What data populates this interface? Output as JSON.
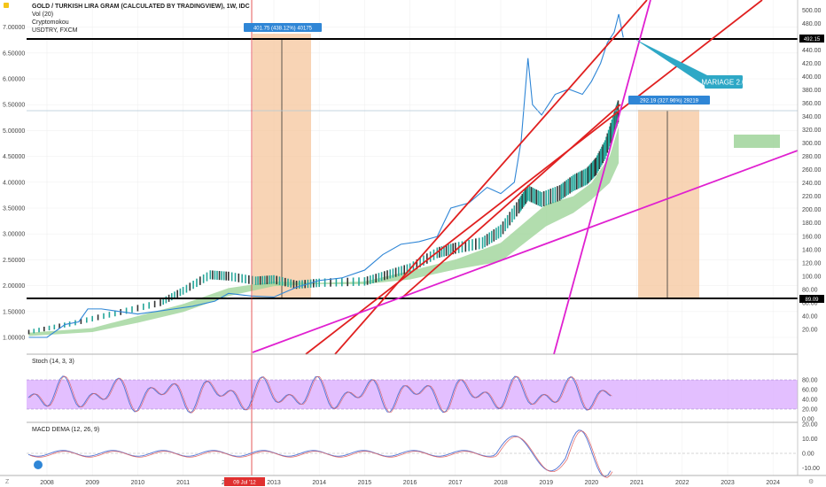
{
  "header": {
    "title": "GOLD / TURKISH LIRA GRAM (CALCULATED BY TRADINGVIEW), 1W, IDC",
    "lines": [
      "Vol (20)",
      "Cryptomokou",
      "USDTRY, FXCM"
    ]
  },
  "colors": {
    "gold_up": "#26a69a",
    "gold_down": "#333333",
    "usdtry": "#2f86d6",
    "red_line": "#e02020",
    "magenta_line": "#e020d0",
    "cloud": "#9fd49a",
    "range_box": "#f6c59c",
    "callout": "#2ea8c6",
    "stoch": "#e0b8ff"
  },
  "chart_data": [
    {
      "type": "line",
      "panel": "price",
      "x_ticks": [
        "2008",
        "2009",
        "2010",
        "2011",
        "2012",
        "2013",
        "2014",
        "2015",
        "2016",
        "2017",
        "2018",
        "2019",
        "2020",
        "2021",
        "2022",
        "2023",
        "2024"
      ],
      "left_axis": {
        "ticks": [
          "7.00000",
          "6.50000",
          "6.00000",
          "5.50000",
          "5.00000",
          "4.50000",
          "4.00000",
          "3.50000",
          "3.00000",
          "2.50000",
          "2.00000",
          "1.50000",
          "1.00000"
        ],
        "range": [
          0.95,
          7.5
        ]
      },
      "right_axis": {
        "ticks": [
          "540.00",
          "520.00",
          "500.00",
          "480.00",
          "460.00",
          "440.00",
          "420.00",
          "400.00",
          "380.00",
          "360.00",
          "340.00",
          "320.00",
          "300.00",
          "280.00",
          "260.00",
          "240.00",
          "220.00",
          "200.00",
          "180.00",
          "160.00",
          "140.00",
          "120.00",
          "100.00",
          "80.00",
          "60.00",
          "40.00",
          "20.00"
        ],
        "range": [
          0,
          550
        ]
      },
      "series": [
        {
          "role": "usdtry_blue",
          "axis": "left",
          "x": [
            2007.6,
            2008.0,
            2008.4,
            2008.7,
            2008.9,
            2009.2,
            2009.6,
            2010.0,
            2010.4,
            2010.8,
            2011.2,
            2011.7,
            2012.0,
            2012.5,
            2013.0,
            2013.5,
            2014.0,
            2014.5,
            2015.0,
            2015.4,
            2015.8,
            2016.2,
            2016.6,
            2016.9,
            2017.3,
            2017.7,
            2018.0,
            2018.3,
            2018.45,
            2018.6,
            2018.7,
            2018.9,
            2019.2,
            2019.5,
            2019.8,
            2020.0,
            2020.2,
            2020.35,
            2020.5,
            2020.6,
            2020.7
          ],
          "y": [
            1.0,
            1.0,
            1.25,
            1.3,
            1.55,
            1.55,
            1.5,
            1.45,
            1.5,
            1.55,
            1.6,
            1.7,
            1.85,
            1.8,
            1.78,
            1.97,
            2.1,
            2.15,
            2.3,
            2.6,
            2.8,
            2.85,
            2.95,
            3.5,
            3.6,
            3.9,
            3.78,
            4.0,
            4.8,
            6.4,
            5.5,
            5.3,
            5.7,
            5.8,
            5.7,
            5.95,
            6.3,
            6.7,
            6.9,
            7.25,
            6.8
          ]
        },
        {
          "role": "gold_price",
          "axis": "right",
          "x": [
            2007.6,
            2008.5,
            2009.5,
            2010.5,
            2011.0,
            2011.6,
            2012.0,
            2012.6,
            2013.0,
            2013.5,
            2014.0,
            2015.0,
            2015.5,
            2016.0,
            2016.6,
            2017.0,
            2017.6,
            2018.0,
            2018.4,
            2018.6,
            2018.9,
            2019.3,
            2019.6,
            2019.9,
            2020.1,
            2020.3,
            2020.5,
            2020.6
          ],
          "y": [
            16,
            28,
            44,
            60,
            78,
            102,
            100,
            93,
            95,
            87,
            90,
            92,
            102,
            112,
            135,
            142,
            150,
            168,
            205,
            225,
            215,
            225,
            240,
            250,
            265,
            290,
            330,
            350
          ]
        },
        {
          "role": "cloud_upper",
          "axis": "right",
          "x": [
            2007.6,
            2009.0,
            2010.0,
            2011.0,
            2012.0,
            2013.0,
            2014.0,
            2015.0,
            2016.0,
            2017.0,
            2018.0,
            2019.0,
            2019.6,
            2020.0,
            2020.4,
            2020.6
          ],
          "y": [
            15,
            22,
            40,
            58,
            82,
            92,
            90,
            92,
            108,
            125,
            150,
            208,
            220,
            240,
            280,
            325
          ]
        },
        {
          "role": "cloud_lower",
          "axis": "right",
          "x": [
            2007.6,
            2009.0,
            2010.0,
            2011.0,
            2012.0,
            2013.0,
            2014.0,
            2015.0,
            2016.0,
            2017.0,
            2018.0,
            2019.0,
            2019.6,
            2020.0,
            2020.4,
            2020.6
          ],
          "y": [
            10,
            16,
            30,
            46,
            70,
            85,
            88,
            88,
            95,
            110,
            122,
            175,
            195,
            215,
            240,
            270
          ]
        }
      ]
    },
    {
      "type": "line",
      "panel": "stoch",
      "label": "Stoch (14, 3, 3)",
      "y_ticks": [
        "80.00",
        "60.00",
        "40.00",
        "20.00",
        "0.00"
      ],
      "range": [
        0,
        100
      ],
      "band": [
        20,
        80
      ]
    },
    {
      "type": "line",
      "panel": "macd",
      "label": "MACD DEMA (12, 26, 9)",
      "y_ticks": [
        "20.00",
        "10.00",
        "0.00",
        "-10.00"
      ],
      "range": [
        -18,
        25
      ]
    }
  ],
  "annotations": {
    "measure1": "401.75 (438.12%) 40175",
    "measure2": "292.19 (327.96%) 29219",
    "callout": "MARIAGE 2.0",
    "level_top": "492.15",
    "level_bottom": "89.09",
    "date_marker": "09 Jul '12"
  }
}
